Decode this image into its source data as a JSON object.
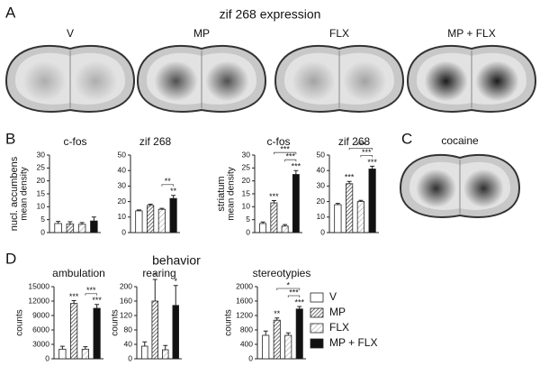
{
  "panel_labels": [
    "A",
    "B",
    "C",
    "D"
  ],
  "panel_a": {
    "title": "zif 268 expression",
    "images": [
      "V",
      "MP",
      "FLX",
      "MP + FLX"
    ]
  },
  "panel_c": {
    "title": "cocaine"
  },
  "panel_d": {
    "title": "behavior"
  },
  "legend": [
    {
      "name": "V",
      "style": "white"
    },
    {
      "name": "MP",
      "style": "hatch"
    },
    {
      "name": "FLX",
      "style": "light-hatch"
    },
    {
      "name": "MP + FLX",
      "style": "black"
    }
  ],
  "chart_data": [
    {
      "type": "bar",
      "title": "c-fos",
      "ylabel": [
        "nucl. accumbens",
        "mean density"
      ],
      "ylim": [
        0,
        30
      ],
      "yticks": [
        0,
        5,
        10,
        15,
        20,
        25,
        30
      ],
      "values": [
        3.5,
        3.3,
        3.2,
        4.5
      ],
      "errors": [
        0.8,
        0.9,
        0.7,
        1.5
      ]
    },
    {
      "type": "bar",
      "title": "zif 268",
      "ylim": [
        0,
        50
      ],
      "yticks": [
        0,
        10,
        20,
        30,
        40,
        50
      ],
      "values": [
        14,
        17.5,
        15,
        22
      ],
      "errors": [
        0.6,
        0.8,
        0.6,
        2
      ],
      "stars": [
        {
          "bar": 3,
          "label": "**"
        }
      ],
      "brackets": [
        {
          "from": 2,
          "to": 3,
          "label": "**"
        }
      ]
    },
    {
      "type": "bar",
      "title": "c-fos",
      "ylabel": [
        "striatum",
        "mean density"
      ],
      "ylim": [
        0,
        30
      ],
      "yticks": [
        0,
        5,
        10,
        15,
        20,
        25,
        30
      ],
      "values": [
        3.5,
        11.5,
        2.5,
        22.5
      ],
      "errors": [
        0.6,
        0.9,
        0.6,
        1.5
      ],
      "stars": [
        {
          "bar": 1,
          "label": "***"
        },
        {
          "bar": 3,
          "label": "***"
        }
      ],
      "brackets": [
        {
          "from": 2,
          "to": 3,
          "label": "***"
        },
        {
          "from": 1,
          "to": 3,
          "label": "***"
        }
      ]
    },
    {
      "type": "bar",
      "title": "zif 268",
      "ylim": [
        0,
        50
      ],
      "yticks": [
        0,
        10,
        20,
        30,
        40,
        50
      ],
      "values": [
        18,
        31.5,
        20,
        41
      ],
      "errors": [
        0.8,
        1.5,
        0.8,
        1.8
      ],
      "stars": [
        {
          "bar": 1,
          "label": "***"
        },
        {
          "bar": 3,
          "label": "***"
        }
      ],
      "brackets": [
        {
          "from": 2,
          "to": 3,
          "label": "***"
        },
        {
          "from": 1,
          "to": 3,
          "label": "***"
        }
      ]
    },
    {
      "type": "bar",
      "title": "ambulation",
      "ylabel": [
        "counts"
      ],
      "ylim": [
        0,
        15000
      ],
      "yticks": [
        0,
        3000,
        6000,
        9000,
        12000,
        15000
      ],
      "values": [
        2000,
        11500,
        2000,
        10500
      ],
      "errors": [
        600,
        600,
        500,
        800
      ],
      "stars": [
        {
          "bar": 1,
          "label": "***"
        },
        {
          "bar": 3,
          "label": "***"
        }
      ],
      "brackets": [
        {
          "from": 2,
          "to": 3,
          "label": "***"
        }
      ]
    },
    {
      "type": "bar",
      "title": "rearing",
      "ylabel": [
        "counts"
      ],
      "ylim": [
        0,
        200
      ],
      "yticks": [
        0,
        40,
        80,
        120,
        160,
        200
      ],
      "values": [
        35,
        160,
        25,
        148
      ],
      "errors": [
        12,
        60,
        12,
        55
      ],
      "stars": [
        {
          "bar": 1,
          "label": "*"
        },
        {
          "bar": 3,
          "label": "*"
        }
      ]
    },
    {
      "type": "bar",
      "title": "stereotypies",
      "ylabel": [
        "counts"
      ],
      "ylim": [
        0,
        2000
      ],
      "yticks": [
        0,
        400,
        800,
        1200,
        1600,
        2000
      ],
      "values": [
        650,
        1070,
        650,
        1380
      ],
      "errors": [
        120,
        60,
        70,
        70
      ],
      "stars": [
        {
          "bar": 1,
          "label": "**"
        },
        {
          "bar": 3,
          "label": "***"
        }
      ],
      "brackets": [
        {
          "from": 2,
          "to": 3,
          "label": "***"
        },
        {
          "from": 1,
          "to": 3,
          "label": "*"
        }
      ]
    }
  ]
}
